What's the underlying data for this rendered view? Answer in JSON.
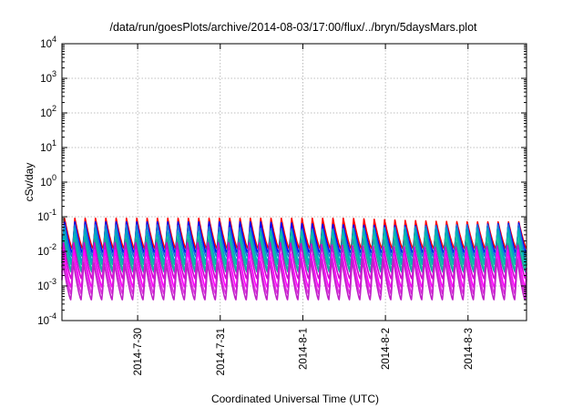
{
  "chart_data": {
    "type": "line",
    "title": "/data/run/goesPlots/archive/2014-08-03/17:00/flux/../bryn/5daysMars.plot",
    "xlabel": "Coordinated Universal Time (UTC)",
    "ylabel": "cSv/day",
    "y_scale": "log",
    "ylim": [
      0.0001,
      10000
    ],
    "xlim": [
      "2014-07-29T02:00",
      "2014-08-03T17:00"
    ],
    "grid": true,
    "x_ticks": [
      "2014-7-30",
      "2014-7-31",
      "2014-8-1",
      "2014-8-2",
      "2014-8-3"
    ],
    "y_ticks": [
      {
        "base": "10",
        "exp": "-4"
      },
      {
        "base": "10",
        "exp": "-3"
      },
      {
        "base": "10",
        "exp": "-2"
      },
      {
        "base": "10",
        "exp": "-1"
      },
      {
        "base": "10",
        "exp": "0"
      },
      {
        "base": "10",
        "exp": "1"
      },
      {
        "base": "10",
        "exp": "2"
      },
      {
        "base": "10",
        "exp": "3"
      },
      {
        "base": "10",
        "exp": "4"
      }
    ],
    "pattern": {
      "cycles_per_day": 8,
      "note": "sawtooth-like periodic dose rate, many overlapping series"
    },
    "series": [
      {
        "color": "#ff0000",
        "peak": 0.09,
        "trough": 0.012
      },
      {
        "color": "#0000ff",
        "peak": 0.075,
        "trough": 0.009
      },
      {
        "color": "#1e6fd9",
        "peak": 0.065,
        "trough": 0.007
      },
      {
        "color": "#00a0c8",
        "peak": 0.05,
        "trough": 0.005
      },
      {
        "color": "#00b4b4",
        "peak": 0.04,
        "trough": 0.004
      },
      {
        "color": "#14c8a0",
        "peak": 0.03,
        "trough": 0.003
      },
      {
        "color": "#20a0a0",
        "peak": 0.025,
        "trough": 0.0025
      },
      {
        "color": "#d000d0",
        "peak": 0.018,
        "trough": 0.0016
      },
      {
        "color": "#ff00ff",
        "peak": 0.012,
        "trough": 0.0009
      },
      {
        "color": "#e030e0",
        "peak": 0.008,
        "trough": 0.0006
      },
      {
        "color": "#c020c8",
        "peak": 0.006,
        "trough": 0.0004
      }
    ]
  }
}
